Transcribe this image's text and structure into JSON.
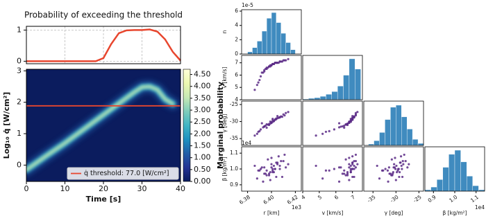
{
  "chart_data": [
    {
      "type": "line",
      "title": "Probability of exceeding the threshold",
      "x": [
        0,
        5,
        10,
        15,
        18,
        20,
        22,
        24,
        26,
        28,
        30,
        32,
        34,
        36,
        38,
        40
      ],
      "values": [
        0,
        0,
        0,
        0,
        0,
        0.1,
        0.55,
        0.9,
        0.99,
        1.0,
        1.0,
        1.02,
        0.95,
        0.7,
        0.3,
        0.02
      ],
      "color": "#e8462e",
      "xlim": [
        0,
        40
      ],
      "ylim": [
        -0.08,
        1.12
      ],
      "yticks": [
        0,
        1
      ],
      "grid": true
    },
    {
      "type": "heatmap",
      "xlabel": "Time [s]",
      "ylabel": "Log₁₀ q̇ [W/cm²]",
      "x": [
        0,
        5,
        10,
        15,
        20,
        25,
        28,
        30,
        32,
        34,
        36,
        38
      ],
      "values": [
        -0.15,
        0.28,
        0.7,
        1.15,
        1.6,
        2.05,
        2.32,
        2.48,
        2.5,
        2.4,
        2.1,
        1.95
      ],
      "xlim": [
        0,
        40
      ],
      "ylim": [
        -0.52,
        3.05
      ],
      "xticks": [
        0,
        10,
        20,
        30,
        40
      ],
      "yticks": [
        0,
        1,
        2,
        3
      ],
      "threshold": 1.886,
      "threshold_color": "#e8462e",
      "legend_label": "q̇ threshold: 77.0 [W/cm²]",
      "legend": "lower right",
      "colorbar_label": "Marginal probability",
      "colorbar_lim": [
        0,
        4.72
      ],
      "colorbar_ticks": [
        {
          "value": 0,
          "label": "0.00"
        },
        {
          "value": 0.5,
          "label": "0.50"
        },
        {
          "value": 1,
          "label": "1.00"
        },
        {
          "value": 1.5,
          "label": "1.50"
        },
        {
          "value": 2,
          "label": "2.00"
        },
        {
          "value": 2.5,
          "label": "2.50"
        },
        {
          "value": 3,
          "label": "3.00"
        },
        {
          "value": 3.5,
          "label": "3.50"
        },
        {
          "value": 4,
          "label": "4.00"
        },
        {
          "value": 4.5,
          "label": "4.50"
        }
      ],
      "colormap": [
        "#0b1c5e",
        "#253494",
        "#225ea8",
        "#1d91c0",
        "#41b6c4",
        "#7fcdbb",
        "#c7e9b4",
        "#edf8b1",
        "#ffffd9"
      ]
    },
    {
      "type": "corner",
      "hist_ylabel": "n",
      "hist_offset": "1e-5",
      "hist_yticks": [
        0,
        2,
        4,
        6
      ],
      "point_color": "#5b2a86",
      "hist_color": "#1f77b4",
      "variables": [
        {
          "label": "r [km]",
          "offset": "1e3",
          "lim": [
            6.375,
            6.425
          ],
          "ticks": [
            6.38,
            {
              "value": 6.4,
              "label": "6.40"
            },
            6.42
          ],
          "samples": [
            6.392,
            6.401,
            6.405,
            6.398,
            6.41,
            6.396,
            6.403,
            6.388,
            6.407,
            6.4,
            6.394,
            6.412,
            6.399,
            6.404,
            6.391,
            6.402,
            6.397,
            6.409,
            6.386,
            6.401,
            6.406,
            6.395,
            6.4,
            6.414,
            6.393,
            6.403,
            6.399,
            6.408,
            6.39,
            6.402,
            6.396,
            6.405,
            6.401,
            6.398,
            6.411,
            6.394,
            6.404,
            6.4,
            6.389,
            6.407
          ],
          "hist": {
            "bins": [
              6.38,
              6.384,
              6.388,
              6.392,
              6.396,
              6.4,
              6.404,
              6.408,
              6.412,
              6.416,
              6.42
            ],
            "counts": [
              0.3,
              0.9,
              1.8,
              3.2,
              5.0,
              5.8,
              4.4,
              2.9,
              1.6,
              0.6
            ],
            "ylim": [
              0,
              6.2
            ]
          }
        },
        {
          "label": "v [km/s]",
          "lim": [
            4,
            7.6
          ],
          "ticks": [
            4,
            5,
            6,
            7
          ],
          "samples": [
            6.2,
            6.9,
            7.0,
            6.7,
            7.2,
            6.5,
            7.0,
            5.2,
            7.1,
            6.8,
            6.4,
            7.2,
            6.8,
            7.0,
            5.9,
            6.9,
            6.6,
            7.1,
            4.8,
            6.9,
            7.0,
            6.5,
            6.8,
            7.3,
            6.2,
            7.0,
            6.7,
            7.1,
            5.6,
            6.9,
            6.6,
            7.0,
            6.9,
            6.7,
            7.2,
            6.3,
            7.0,
            6.8,
            5.4,
            7.1
          ],
          "hist": {
            "bins": [
              4.0,
              4.35,
              4.7,
              5.05,
              5.4,
              5.75,
              6.1,
              6.45,
              6.8,
              7.15,
              7.5
            ],
            "counts": [
              0.1,
              0.2,
              0.3,
              0.5,
              0.8,
              1.2,
              2.0,
              3.6,
              6.0,
              4.5
            ],
            "ylim": [
              0,
              6.5
            ]
          }
        },
        {
          "label": "γ [deg]",
          "lim": [
            -37,
            -24
          ],
          "ticks": [
            -35,
            -30,
            -25
          ],
          "samples": [
            -30.5,
            -29.2,
            -28.4,
            -31.0,
            -27.9,
            -31.8,
            -29.5,
            -33.6,
            -28.8,
            -30.2,
            -31.4,
            -27.5,
            -30.0,
            -29.1,
            -32.3,
            -29.8,
            -30.9,
            -28.6,
            -34.1,
            -29.6,
            -28.9,
            -31.2,
            -30.3,
            -27.2,
            -31.7,
            -29.4,
            -30.6,
            -28.5,
            -32.8,
            -29.9,
            -30.8,
            -29.0,
            -30.1,
            -30.7,
            -28.2,
            -31.5,
            -29.3,
            -30.4,
            -33.0,
            -28.7
          ],
          "hist": {
            "bins": [
              -36,
              -34.8,
              -33.6,
              -32.4,
              -31.2,
              -30,
              -28.8,
              -27.6,
              -26.4,
              -25.2,
              -24
            ],
            "counts": [
              0.2,
              0.7,
              1.9,
              3.8,
              5.6,
              5.9,
              4.2,
              2.4,
              0.9,
              0.3
            ],
            "ylim": [
              0,
              6.5
            ]
          }
        },
        {
          "label": "β [kg/m²]",
          "offset": "1e4",
          "lim": [
            0.86,
            1.14
          ],
          "ticks": [
            0.9,
            {
              "value": 1.0,
              "label": "1.0"
            },
            1.1
          ],
          "samples": [
            1.01,
            0.98,
            1.03,
            0.96,
            1.05,
            0.99,
            1.0,
            0.94,
            1.02,
            1.07,
            0.97,
            1.01,
            0.93,
            1.04,
            1.0,
            0.98,
            1.06,
            0.95,
            1.02,
            0.99,
            1.08,
            0.97,
            1.01,
            1.03,
            0.92,
            1.0,
            0.98,
            1.05,
            0.99,
            1.02,
            0.96,
            1.04,
            1.0,
            0.97,
            1.09,
            1.01,
            0.95,
            1.03,
            0.99,
            1.0
          ],
          "hist": {
            "bins": [
              0.86,
              0.888,
              0.916,
              0.944,
              0.972,
              1.0,
              1.028,
              1.056,
              1.084,
              1.112,
              1.14
            ],
            "counts": [
              0.2,
              0.6,
              1.7,
              3.5,
              5.4,
              6.0,
              4.3,
              2.2,
              0.8,
              0.2
            ],
            "ylim": [
              0,
              6.5
            ]
          }
        }
      ]
    }
  ]
}
